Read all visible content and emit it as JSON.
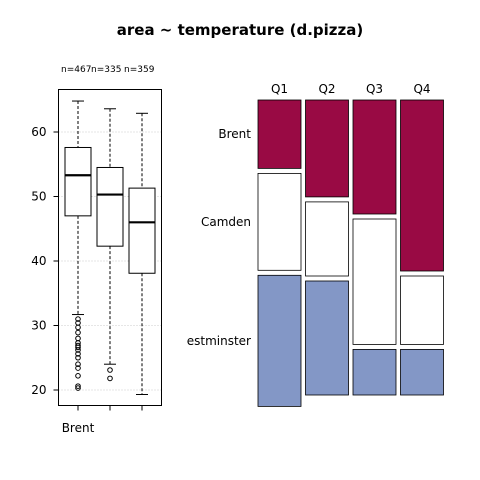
{
  "title": "area ~ temperature (d.pizza)",
  "colors": {
    "brent": "#990a44",
    "camden": "#ffffff",
    "westminster": "#8397c6",
    "box_stroke": "#000000",
    "grid": "#cccccc"
  },
  "chart_data": [
    {
      "type": "boxplot",
      "title": "",
      "ylabel": "",
      "ylim": [
        18,
        66
      ],
      "yticks": [
        "20",
        "30",
        "40",
        "50",
        "60"
      ],
      "group_counts": [
        "n=467",
        "n=335",
        "n=359"
      ],
      "visible_x_label": "Brent",
      "groups": [
        {
          "name": "Brent",
          "whisker_low": 31.7,
          "q1": 47.0,
          "median": 53.3,
          "q3": 57.6,
          "whisker_high": 64.8,
          "outliers": [
            31.0,
            30.4,
            29.7,
            28.9,
            28.0,
            27.3,
            26.9,
            26.6,
            26.2,
            25.6,
            25.0,
            24.0,
            23.4,
            22.2,
            20.6,
            20.3
          ]
        },
        {
          "name": "Camden",
          "whisker_low": 24.0,
          "q1": 42.3,
          "median": 50.3,
          "q3": 54.5,
          "whisker_high": 63.6,
          "outliers": [
            23.1,
            21.8
          ]
        },
        {
          "name": "Westminster",
          "whisker_low": 19.3,
          "q1": 38.1,
          "median": 46.0,
          "q3": 51.3,
          "whisker_high": 62.9,
          "outliers": []
        }
      ],
      "grid": true
    },
    {
      "type": "mosaic",
      "title": "",
      "columns": [
        "Q1",
        "Q2",
        "Q3",
        "Q4"
      ],
      "rows": [
        "Brent",
        "Camden",
        "Westminster"
      ],
      "row_labels_shown": [
        "Brent",
        "Camden",
        "estminster"
      ],
      "column_widths": [
        1.0,
        1.0,
        1.0,
        1.0
      ],
      "proportions": [
        [
          0.24,
          0.34,
          0.46
        ],
        [
          0.34,
          0.26,
          0.4
        ],
        [
          0.4,
          0.44,
          0.16
        ],
        [
          0.6,
          0.24,
          0.16
        ]
      ]
    }
  ]
}
